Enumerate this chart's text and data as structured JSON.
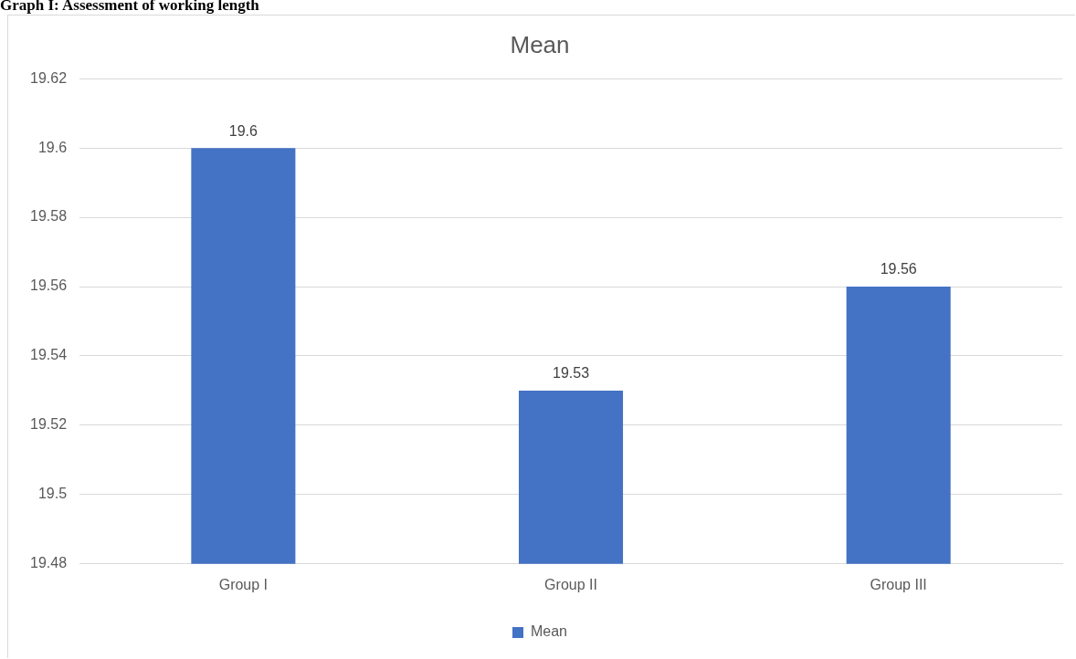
{
  "chart_data": {
    "type": "bar",
    "title": "Mean",
    "annotations": [
      "Graph I: Assessment of working length"
    ],
    "categories": [
      "Group I",
      "Group II",
      "Group III"
    ],
    "series": [
      {
        "name": "Mean",
        "color": "#4472c4",
        "values": [
          19.6,
          19.53,
          19.56
        ]
      }
    ],
    "ylim": [
      19.48,
      19.62
    ],
    "yticks": [
      19.48,
      19.5,
      19.52,
      19.54,
      19.56,
      19.58,
      19.6,
      19.62
    ],
    "grid": "y",
    "legend": "bottom",
    "data_labels": true
  }
}
